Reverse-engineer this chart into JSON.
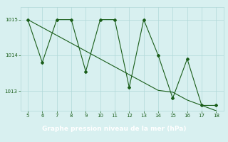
{
  "x": [
    5,
    6,
    7,
    8,
    9,
    10,
    11,
    12,
    13,
    14,
    15,
    16,
    17,
    18
  ],
  "y_main": [
    1015.0,
    1013.8,
    1015.0,
    1015.0,
    1013.55,
    1015.0,
    1015.0,
    1013.1,
    1015.0,
    1014.0,
    1012.8,
    1013.9,
    1012.6,
    1012.6
  ],
  "y_trend": [
    1015.0,
    1014.78,
    1014.56,
    1014.34,
    1014.12,
    1013.9,
    1013.68,
    1013.46,
    1013.24,
    1013.02,
    1012.97,
    1012.75,
    1012.6,
    1012.45
  ],
  "line_color": "#1a5e1a",
  "bg_color": "#d8f0f0",
  "grid_color": "#b0d8d8",
  "xlabel": "Graphe pression niveau de la mer (hPa)",
  "xlabel_bg": "#4a7a4a",
  "xlabel_fg": "#ffffff",
  "xlim": [
    4.5,
    18.5
  ],
  "ylim": [
    1012.45,
    1015.35
  ],
  "yticks": [
    1013,
    1014,
    1015
  ],
  "xticks": [
    5,
    6,
    7,
    8,
    9,
    10,
    11,
    12,
    13,
    14,
    15,
    16,
    17,
    18
  ]
}
